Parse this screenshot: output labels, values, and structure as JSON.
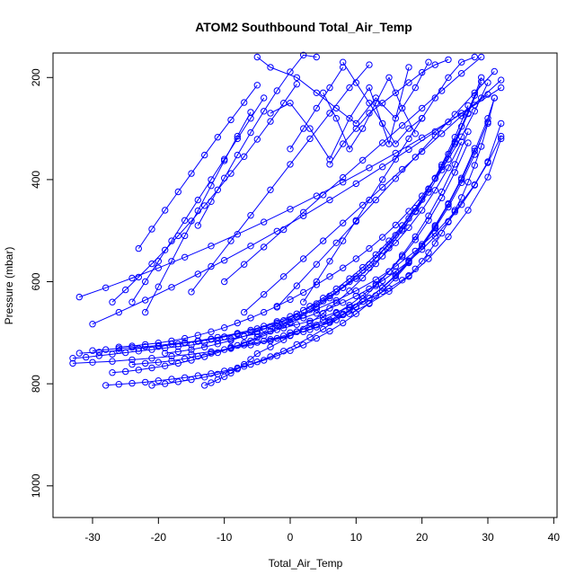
{
  "chart_data": {
    "type": "line",
    "title": "ATOM2 Southbound Total_Air_Temp",
    "xlabel": "Total_Air_Temp",
    "ylabel": "Pressure (mbar)",
    "xlim": [
      -36,
      40.5
    ],
    "ylim": [
      1062,
      152
    ],
    "y_reversed": true,
    "x_ticks": [
      -30,
      -20,
      -10,
      0,
      10,
      20,
      30,
      40
    ],
    "y_ticks": [
      200,
      400,
      600,
      800,
      1000
    ],
    "grid": false,
    "legend": "none",
    "marker": "open-circle",
    "series_color": "#0000ff",
    "series": [
      {
        "x": [
          -33,
          -31,
          -29,
          -27,
          -25,
          -23,
          -21,
          -19,
          -17,
          -15,
          -13,
          -11,
          -9,
          -7,
          -5,
          -3,
          -1,
          1,
          3,
          5,
          7,
          9,
          11,
          13,
          15,
          17,
          18,
          19,
          20,
          21,
          22,
          23,
          24,
          25,
          26,
          27,
          28,
          29,
          30,
          31
        ],
        "y": [
          750,
          748,
          745,
          742,
          739,
          736,
          733,
          730,
          727,
          724,
          720,
          716,
          712,
          707,
          702,
          697,
          691,
          684,
          677,
          669,
          660,
          650,
          639,
          627,
          613,
          597,
          588,
          575,
          560,
          543,
          525,
          505,
          483,
          460,
          435,
          405,
          372,
          335,
          290,
          240
        ]
      },
      {
        "x": [
          -30,
          -28,
          -26,
          -24,
          -22,
          -20,
          -18,
          -16,
          -14,
          -12,
          -10,
          -8,
          -6,
          -4,
          -2,
          0,
          2,
          4,
          6,
          8,
          10,
          12,
          14,
          16,
          18,
          20,
          22,
          24,
          26,
          28,
          30,
          32
        ],
        "y": [
          735,
          733,
          731,
          729,
          727,
          725,
          722,
          719,
          716,
          712,
          708,
          703,
          698,
          692,
          686,
          679,
          671,
          662,
          652,
          641,
          628,
          614,
          598,
          580,
          560,
          537,
          511,
          482,
          449,
          411,
          367,
          315
        ]
      },
      {
        "x": [
          -33,
          -30,
          -27,
          -24,
          -21,
          -18,
          -15,
          -12,
          -9,
          -6,
          -3,
          0,
          3,
          6,
          9,
          12,
          15,
          18,
          21,
          24,
          27,
          30,
          32
        ],
        "y": [
          760,
          758,
          756,
          753,
          750,
          746,
          742,
          737,
          731,
          724,
          716,
          706,
          694,
          680,
          663,
          643,
          619,
          590,
          555,
          512,
          460,
          395,
          320
        ]
      },
      {
        "x": [
          -28,
          -26,
          -24,
          -22,
          -20,
          -18,
          -16,
          -14,
          -12,
          -10,
          -8,
          -6,
          -4,
          -2,
          0,
          2,
          4,
          6,
          8,
          10,
          12,
          14,
          16,
          18,
          20,
          22,
          24,
          26,
          28,
          30,
          31
        ],
        "y": [
          803,
          801,
          799,
          797,
          794,
          791,
          788,
          784,
          780,
          775,
          769,
          762,
          754,
          745,
          735,
          724,
          711,
          697,
          681,
          663,
          642,
          619,
          593,
          563,
          530,
          492,
          449,
          400,
          344,
          280,
          240
        ]
      },
      {
        "x": [
          -32,
          -29,
          -26,
          -23,
          -20,
          -17,
          -14,
          -11,
          -8,
          -5,
          -2,
          1,
          4,
          7,
          10,
          13,
          16,
          19,
          22,
          25,
          28,
          30,
          32
        ],
        "y": [
          740,
          738,
          735,
          731,
          727,
          722,
          716,
          709,
          701,
          692,
          681,
          668,
          654,
          637,
          618,
          596,
          570,
          540,
          505,
          463,
          410,
          365,
          290
        ]
      },
      {
        "x": [
          -26,
          -24,
          -22,
          -20,
          -18,
          -16,
          -14,
          -12,
          -10,
          -8,
          -6,
          -4,
          -2,
          0,
          2,
          4,
          6,
          8,
          10,
          12,
          14,
          16,
          18,
          20,
          22,
          24,
          26,
          28,
          30
        ],
        "y": [
          728,
          726,
          723,
          720,
          716,
          711,
          705,
          698,
          690,
          681,
          671,
          660,
          648,
          635,
          621,
          606,
          590,
          573,
          555,
          535,
          513,
          489,
          462,
          432,
          398,
          360,
          316,
          266,
          210
        ]
      },
      {
        "x": [
          -27,
          -25,
          -23,
          -21,
          -19,
          -17,
          -15,
          -13,
          -11,
          -9,
          -7,
          -5,
          -3,
          -1,
          1,
          3,
          5,
          7,
          9,
          11,
          13,
          15,
          17,
          19,
          21,
          23,
          25,
          27,
          29
        ],
        "y": [
          778,
          776,
          773,
          769,
          765,
          760,
          754,
          747,
          739,
          730,
          720,
          709,
          697,
          684,
          670,
          655,
          638,
          620,
          600,
          578,
          554,
          527,
          497,
          463,
          425,
          381,
          330,
          270,
          200
        ]
      },
      {
        "x": [
          -24,
          -22,
          -20,
          -18,
          -16,
          -14,
          -12,
          -10,
          -8,
          -6,
          -4,
          -2,
          0,
          2,
          4,
          6,
          8,
          10,
          12,
          14,
          16,
          18,
          20,
          22,
          24,
          26,
          28
        ],
        "y": [
          762,
          760,
          758,
          755,
          751,
          746,
          740,
          733,
          725,
          716,
          706,
          694,
          681,
          666,
          650,
          632,
          612,
          590,
          566,
          539,
          509,
          476,
          439,
          397,
          350,
          296,
          235
        ]
      },
      {
        "x": [
          -21,
          -19,
          -17,
          -15,
          -13,
          -11,
          -9,
          -7,
          -5,
          -3,
          -1,
          1,
          3,
          5,
          7,
          9,
          11,
          13,
          15,
          17,
          19,
          21,
          23,
          25,
          27
        ],
        "y": [
          803,
          800,
          796,
          792,
          787,
          781,
          774,
          766,
          757,
          747,
          736,
          723,
          709,
          693,
          675,
          655,
          633,
          608,
          580,
          548,
          512,
          471,
          424,
          370,
          306
        ]
      },
      {
        "x": [
          -13,
          -12,
          -11,
          -10,
          -9,
          -8,
          -7,
          -6,
          -5,
          -3,
          -1,
          1,
          3,
          5,
          7,
          9,
          11,
          13,
          15,
          17,
          19,
          21,
          23,
          25,
          27
        ],
        "y": [
          803,
          798,
          792,
          786,
          779,
          771,
          762,
          752,
          741,
          728,
          714,
          698,
          681,
          662,
          641,
          618,
          593,
          565,
          534,
          500,
          462,
          419,
          371,
          317,
          255
        ]
      },
      {
        "x": [
          -19,
          -17,
          -15,
          -13,
          -11,
          -9,
          -7,
          -5,
          -3,
          -1,
          1,
          3,
          5,
          7,
          9,
          11,
          13,
          15,
          17,
          19,
          21,
          23,
          25,
          27,
          29
        ],
        "y": [
          740,
          737,
          733,
          728,
          722,
          715,
          707,
          698,
          688,
          676,
          663,
          648,
          632,
          614,
          594,
          572,
          547,
          520,
          490,
          456,
          418,
          375,
          326,
          271,
          208
        ]
      },
      {
        "x": [
          -16,
          -14,
          -12,
          -10,
          -8,
          -6,
          -4,
          -2,
          0,
          2,
          4,
          6,
          8,
          10,
          12,
          14,
          16,
          18,
          20,
          22,
          24,
          26
        ],
        "y": [
          720,
          717,
          713,
          708,
          702,
          695,
          687,
          678,
          668,
          656,
          643,
          628,
          612,
          594,
          573,
          550,
          524,
          494,
          460,
          421,
          377,
          326
        ]
      },
      {
        "x": [
          -9,
          -7,
          -5,
          -3,
          -1,
          1,
          3,
          5,
          7,
          9,
          11,
          13,
          15,
          17,
          19,
          21,
          23,
          25,
          27
        ],
        "y": [
          728,
          724,
          719,
          713,
          706,
          698,
          688,
          676,
          662,
          646,
          627,
          605,
          580,
          551,
          518,
          480,
          436,
          386,
          328
        ]
      },
      {
        "x": [
          -4,
          -2,
          0,
          2,
          4,
          6,
          8,
          10,
          12,
          14,
          16,
          18,
          20,
          22,
          24,
          26,
          28
        ],
        "y": [
          716,
          711,
          705,
          698,
          689,
          678,
          665,
          650,
          632,
          611,
          587,
          559,
          527,
          490,
          447,
          397,
          339
        ]
      },
      {
        "x": [
          0,
          2,
          4,
          6,
          8,
          10,
          12,
          14,
          16,
          18,
          20,
          22,
          24,
          26,
          28,
          30
        ],
        "y": [
          700,
          693,
          685,
          675,
          663,
          649,
          632,
          612,
          589,
          562,
          531,
          495,
          454,
          406,
          351,
          287
        ]
      },
      {
        "x": [
          -32,
          -28,
          -24,
          -20,
          -16,
          -12,
          -8,
          -4,
          0,
          4,
          8,
          12,
          16,
          20,
          24,
          28,
          32
        ],
        "y": [
          630,
          612,
          593,
          573,
          552,
          530,
          507,
          483,
          458,
          432,
          405,
          377,
          348,
          318,
          287,
          254,
          220
        ]
      },
      {
        "x": [
          -30,
          -26,
          -22,
          -18,
          -14,
          -10,
          -6,
          -2,
          2,
          6,
          10,
          14,
          18,
          22,
          26,
          30
        ],
        "y": [
          683,
          660,
          636,
          611,
          585,
          558,
          530,
          501,
          471,
          440,
          408,
          375,
          341,
          306,
          270,
          233
        ]
      },
      {
        "x": [
          -27,
          -25,
          -23,
          -21,
          -19,
          -17,
          -15,
          -13,
          -11,
          -9,
          -7,
          -5,
          -3,
          -1,
          1
        ],
        "y": [
          640,
          616,
          591,
          565,
          538,
          510,
          481,
          451,
          420,
          388,
          355,
          321,
          286,
          250,
          213
        ]
      },
      {
        "x": [
          -24,
          -22,
          -20,
          -18,
          -16,
          -14,
          -12,
          -10,
          -8,
          -6,
          -4
        ],
        "y": [
          640,
          600,
          560,
          520,
          480,
          440,
          400,
          360,
          320,
          280,
          240
        ]
      },
      {
        "x": [
          -23,
          -21,
          -19,
          -17,
          -15,
          -13,
          -11,
          -9,
          -7,
          -5
        ],
        "y": [
          535,
          497,
          460,
          424,
          388,
          352,
          317,
          283,
          249,
          215
        ]
      },
      {
        "x": [
          -22,
          -20,
          -18,
          -16,
          -14,
          -12,
          -10,
          -8,
          -6
        ],
        "y": [
          660,
          610,
          560,
          510,
          461,
          412,
          363,
          315,
          268
        ]
      },
      {
        "x": [
          -14,
          -12,
          -10,
          -8,
          -6,
          -4,
          -2,
          0,
          2,
          4
        ],
        "y": [
          490,
          443,
          397,
          352,
          308,
          266,
          226,
          189,
          156,
          160
        ]
      },
      {
        "x": [
          -15,
          -12,
          -9,
          -6,
          -3,
          0,
          3,
          6,
          9,
          12
        ],
        "y": [
          620,
          570,
          520,
          470,
          420,
          370,
          320,
          270,
          220,
          175
        ]
      },
      {
        "x": [
          -10,
          -7,
          -4,
          -1,
          2,
          5,
          8,
          11,
          14,
          17,
          20,
          23,
          26,
          29
        ],
        "y": [
          600,
          566,
          532,
          498,
          464,
          430,
          396,
          362,
          328,
          294,
          260,
          226,
          192,
          160
        ]
      },
      {
        "x": [
          -7,
          -4,
          -1,
          2,
          5,
          8,
          11,
          14,
          17,
          20,
          23,
          26,
          29,
          32
        ],
        "y": [
          660,
          625,
          590,
          555,
          520,
          485,
          450,
          415,
          380,
          345,
          310,
          275,
          240,
          205
        ]
      },
      {
        "x": [
          -2,
          1,
          4,
          7,
          10,
          13,
          16,
          19,
          22,
          25,
          28,
          31
        ],
        "y": [
          650,
          608,
          566,
          524,
          482,
          440,
          398,
          356,
          314,
          272,
          230,
          188
        ]
      },
      {
        "x": [
          2,
          4,
          6,
          8,
          10,
          12,
          14,
          16,
          18,
          20,
          22,
          24,
          26,
          28
        ],
        "y": [
          640,
          600,
          560,
          520,
          480,
          440,
          400,
          360,
          320,
          280,
          240,
          200,
          170,
          160
        ]
      },
      {
        "x": [
          -3,
          0,
          3,
          6,
          9,
          12,
          15,
          18
        ],
        "y": [
          270,
          250,
          300,
          360,
          280,
          220,
          330,
          180
        ]
      },
      {
        "x": [
          -5,
          -3,
          1,
          4,
          7,
          10,
          13,
          16,
          19,
          21
        ],
        "y": [
          160,
          180,
          200,
          230,
          260,
          290,
          240,
          280,
          220,
          170
        ]
      },
      {
        "x": [
          6,
          8,
          10,
          12,
          14,
          16,
          18,
          20,
          22,
          24
        ],
        "y": [
          370,
          330,
          300,
          270,
          250,
          230,
          210,
          190,
          175,
          165
        ]
      },
      {
        "x": [
          5,
          7,
          9,
          11,
          13,
          15,
          17,
          19
        ],
        "y": [
          230,
          280,
          340,
          300,
          250,
          200,
          260,
          310
        ]
      },
      {
        "x": [
          8,
          10,
          12,
          14,
          16,
          18,
          20
        ],
        "y": [
          170,
          210,
          250,
          290,
          330,
          300,
          280
        ]
      },
      {
        "x": [
          0,
          2,
          4,
          6,
          8
        ],
        "y": [
          340,
          300,
          260,
          220,
          180
        ]
      }
    ]
  }
}
